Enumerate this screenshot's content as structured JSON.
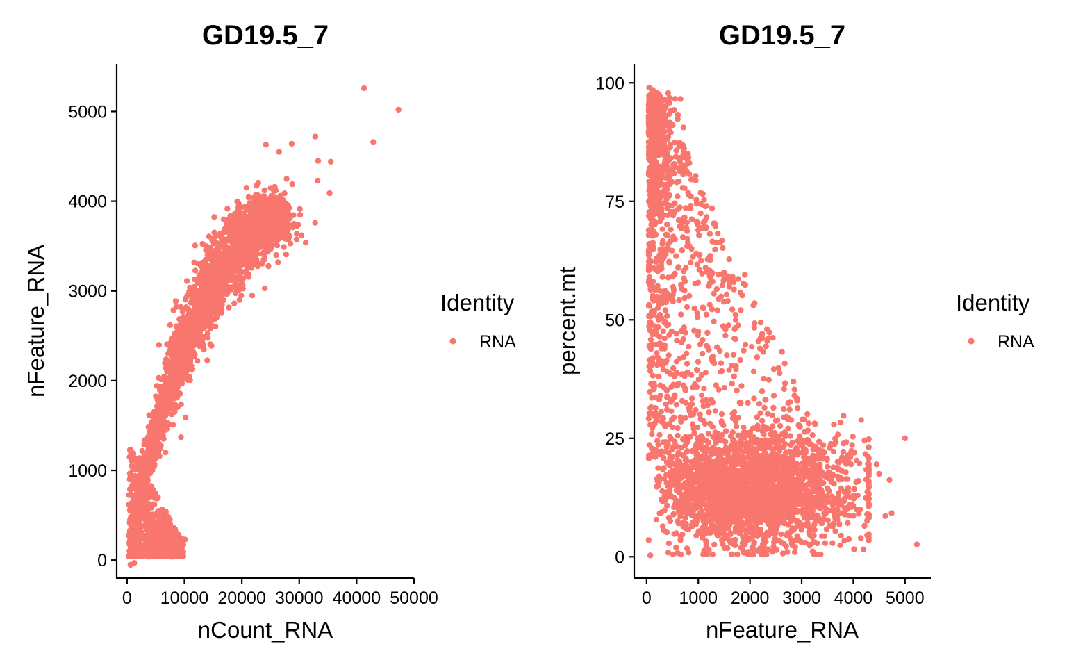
{
  "point_color": "#F8766D",
  "chart_data": [
    {
      "type": "scatter",
      "title": "GD19.5_7",
      "xlabel": "nCount_RNA",
      "ylabel": "nFeature_RNA",
      "xlim": [
        -1800,
        50000
      ],
      "ylim": [
        -200,
        5530
      ],
      "xticks": [
        0,
        10000,
        20000,
        30000,
        40000,
        50000
      ],
      "xtick_labels": [
        "0",
        "10000",
        "20000",
        "30000",
        "40000",
        "50000"
      ],
      "yticks": [
        0,
        1000,
        2000,
        3000,
        4000,
        5000
      ],
      "ytick_labels": [
        "0",
        "1000",
        "2000",
        "3000",
        "4000",
        "5000"
      ],
      "legend": {
        "title": "Identity",
        "entries": [
          "RNA"
        ],
        "position": "right"
      },
      "series": [
        {
          "name": "RNA",
          "x": [
            41300,
            47300,
            42900,
            32800,
            24200,
            26500,
            28700,
            33300,
            35500,
            33200,
            35300,
            27800,
            28800,
            24900,
            29800,
            30400,
            26000,
            26300,
            24000,
            21900,
            20800,
            19600,
            18600,
            17300,
            13200,
            16400,
            21800,
            12900,
            9400,
            8700,
            7500,
            6000,
            10200,
            8000,
            7000,
            9400,
            6700,
            4300,
            3700,
            2600,
            1800,
            2200,
            1500,
            1200,
            900,
            700,
            4000,
            5500,
            7000,
            8300,
            9500,
            10100
          ],
          "y": [
            5260,
            5020,
            4660,
            4720,
            4630,
            4550,
            4640,
            4450,
            4440,
            4230,
            4090,
            4250,
            4190,
            4020,
            3740,
            3620,
            3400,
            3320,
            3030,
            3680,
            4150,
            3870,
            3700,
            3400,
            3250,
            3100,
            2950,
            2450,
            2820,
            2000,
            2620,
            1750,
            1590,
            1510,
            1460,
            1370,
            1200,
            1080,
            1000,
            880,
            700,
            600,
            450,
            300,
            180,
            90,
            480,
            420,
            360,
            300,
            240,
            230
          ]
        }
      ]
    },
    {
      "type": "scatter",
      "title": "GD19.5_7",
      "xlabel": "nFeature_RNA",
      "ylabel": "percent.mt",
      "xlim": [
        -240,
        5500
      ],
      "ylim": [
        -4.5,
        104
      ],
      "xticks": [
        0,
        1000,
        2000,
        3000,
        4000,
        5000
      ],
      "xtick_labels": [
        "0",
        "1000",
        "2000",
        "3000",
        "4000",
        "5000"
      ],
      "yticks": [
        0,
        25,
        50,
        75,
        100
      ],
      "ytick_labels": [
        "0",
        "25",
        "50",
        "75",
        "100"
      ],
      "legend": {
        "title": "Identity",
        "entries": [
          "RNA"
        ],
        "position": "right"
      },
      "series": [
        {
          "name": "RNA",
          "x": [
            5000,
            5230,
            4700,
            4740,
            4620,
            4300,
            4500,
            4450,
            4100,
            4000,
            3820,
            3500,
            3260,
            2860,
            2200,
            1900,
            1600,
            1370,
            1140,
            960,
            850,
            800,
            700,
            620,
            550,
            450,
            380,
            300,
            200,
            150,
            120,
            80,
            50,
            40,
            600,
            700,
            900,
            1200,
            1500,
            1750,
            2000,
            2400,
            2800,
            3200,
            3600,
            3900,
            180,
            260,
            70
          ],
          "y": [
            25.0,
            2.6,
            16.2,
            9.2,
            8.6,
            11.0,
            17.5,
            19.5,
            16.0,
            22.0,
            12.0,
            19.0,
            28.0,
            34.0,
            46.0,
            59.5,
            57.0,
            52.0,
            61.0,
            64.0,
            73.5,
            85.0,
            81.0,
            71.0,
            67.0,
            91.0,
            88.0,
            94.0,
            96.5,
            97.0,
            98.5,
            95.5,
            99.0,
            3.5,
            0.8,
            12.0,
            10.0,
            15.0,
            20.0,
            13.0,
            18.0,
            14.0,
            12.0,
            9.0,
            11.0,
            14.5,
            60.5,
            45.0,
            0.3
          ]
        }
      ]
    }
  ]
}
